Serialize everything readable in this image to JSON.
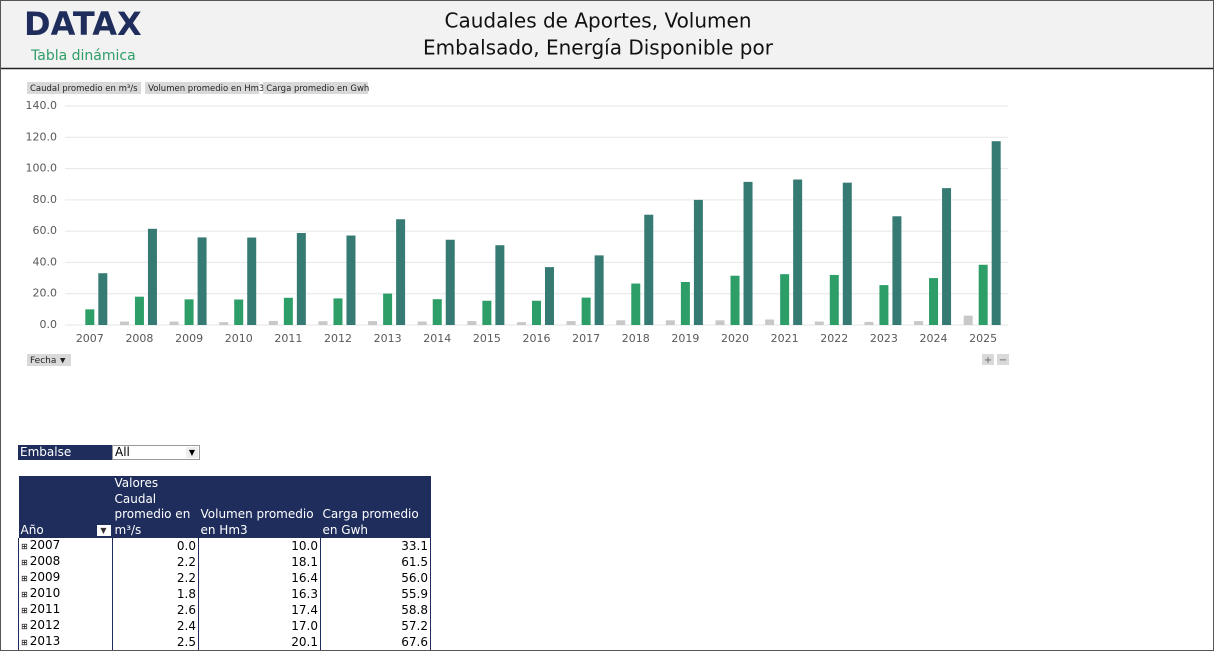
{
  "header": {
    "logo": "DATAX",
    "subtitle": "Tabla dinámica",
    "title": [
      "Caudales de Aportes, Volumen",
      "Embalsado, Energía Disponible por"
    ]
  },
  "chart_data": {
    "type": "bar",
    "categories": [
      "2007",
      "2008",
      "2009",
      "2010",
      "2011",
      "2012",
      "2013",
      "2014",
      "2015",
      "2016",
      "2017",
      "2018",
      "2019",
      "2020",
      "2021",
      "2022",
      "2023",
      "2024",
      "2025"
    ],
    "series": [
      {
        "name": "Caudal promedio en m³/s",
        "color": "#c8c8c8",
        "values": [
          0.0,
          2.2,
          2.2,
          1.8,
          2.6,
          2.4,
          2.5,
          2.2,
          2.5,
          1.8,
          2.5,
          3.0,
          3.0,
          3.0,
          3.5,
          2.2,
          2.0,
          2.5,
          6.0
        ]
      },
      {
        "name": "Volumen promedio en Hm3",
        "color": "#2e9e68",
        "values": [
          10.0,
          18.1,
          16.4,
          16.3,
          17.4,
          17.0,
          20.1,
          16.5,
          15.5,
          15.5,
          17.5,
          26.5,
          27.5,
          31.5,
          32.5,
          32.0,
          25.5,
          30.0,
          38.5
        ]
      },
      {
        "name": "Carga promedio en Gwh",
        "color": "#367a74",
        "values": [
          33.1,
          61.5,
          56.0,
          55.9,
          58.8,
          57.2,
          67.6,
          54.5,
          51.0,
          37.0,
          44.5,
          70.5,
          80.0,
          91.5,
          93.0,
          91.0,
          69.5,
          87.5,
          117.5
        ]
      }
    ],
    "ylim": [
      0,
      140
    ],
    "yticks": [
      {
        "value": 0,
        "label": "0.0"
      },
      {
        "value": 20,
        "label": "20.0"
      },
      {
        "value": 40,
        "label": "40.0"
      },
      {
        "value": 60,
        "label": "60.0"
      },
      {
        "value": 80,
        "label": "80.0"
      },
      {
        "value": 100,
        "label": "100.0"
      },
      {
        "value": 120,
        "label": "120.0"
      },
      {
        "value": 140,
        "label": "140.0"
      }
    ],
    "grid": true,
    "field_button": "Fecha"
  },
  "filter": {
    "label": "Embalse",
    "value": "All"
  },
  "table": {
    "corner": "Valores",
    "row_header": "Año",
    "columns": [
      "Caudal promedio en m³/s",
      "Volumen promedio en Hm3",
      "Carga promedio en Gwh"
    ],
    "rows": [
      [
        "2007",
        "0.0",
        "10.0",
        "33.1"
      ],
      [
        "2008",
        "2.2",
        "18.1",
        "61.5"
      ],
      [
        "2009",
        "2.2",
        "16.4",
        "56.0"
      ],
      [
        "2010",
        "1.8",
        "16.3",
        "55.9"
      ],
      [
        "2011",
        "2.6",
        "17.4",
        "58.8"
      ],
      [
        "2012",
        "2.4",
        "17.0",
        "57.2"
      ],
      [
        "2013",
        "2.5",
        "20.1",
        "67.6"
      ]
    ]
  }
}
